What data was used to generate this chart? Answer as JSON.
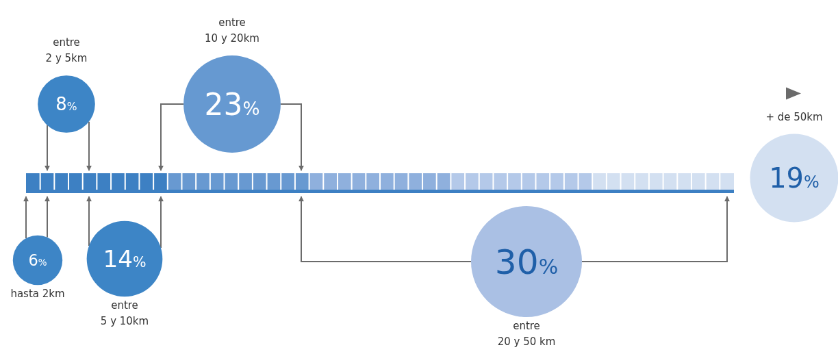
{
  "chart_data": {
    "type": "other",
    "categories": [
      "hasta 2km",
      "entre\n2 y 5km",
      "entre\n5 y 10km",
      "entre\n10 y 20km",
      "entre\n20 y 50 km",
      "+ de 50km"
    ],
    "values": [
      6,
      8,
      14,
      23,
      30,
      19
    ],
    "value_labels": [
      "6%",
      "8%",
      "14%",
      "23%",
      "30%",
      "19%"
    ],
    "colors": [
      "#3d85c6",
      "#3d85c6",
      "#3d85c6",
      "#6699d1",
      "#aac0e4",
      "#d3e0f1"
    ]
  }
}
